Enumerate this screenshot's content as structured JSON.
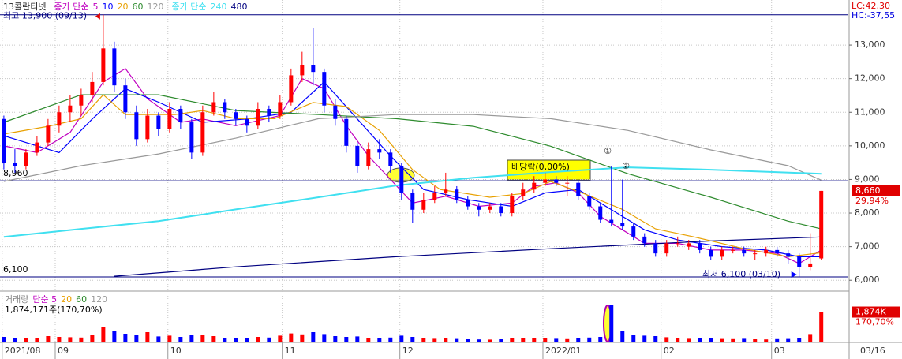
{
  "chart_data": {
    "type": "candlestick",
    "title": "13콜란티넷",
    "legend_prefix": "종가 단순",
    "up_color": "#ff0000",
    "down_color": "#0000ff",
    "x": [
      0,
      2,
      4,
      6,
      8,
      10,
      12,
      14,
      16,
      18,
      20,
      22,
      24,
      26,
      28,
      30,
      32,
      34,
      36,
      38,
      40,
      42,
      44,
      46,
      48,
      50,
      52,
      54,
      56,
      58,
      60,
      62,
      64,
      66,
      68,
      70,
      72,
      74,
      76,
      78,
      80,
      82,
      84,
      86,
      88,
      90,
      92,
      94,
      96,
      98,
      100,
      102,
      104,
      106,
      108,
      110,
      112,
      114,
      116,
      118,
      120,
      122,
      124,
      126,
      128,
      130,
      132,
      134,
      136,
      138,
      140,
      142,
      144,
      146,
      148
    ],
    "candles": [
      [
        10800,
        10900,
        9300,
        9500
      ],
      [
        9500,
        9900,
        9200,
        9400
      ],
      [
        9400,
        9900,
        9300,
        9800
      ],
      [
        9800,
        10300,
        9700,
        10100
      ],
      [
        10100,
        10800,
        10000,
        10600
      ],
      [
        10600,
        11200,
        10400,
        11000
      ],
      [
        11000,
        11500,
        10700,
        11200
      ],
      [
        11200,
        11700,
        10900,
        11500
      ],
      [
        11500,
        12200,
        11300,
        11900
      ],
      [
        11900,
        13900,
        11800,
        12900
      ],
      [
        12900,
        13100,
        11600,
        11800
      ],
      [
        11800,
        12000,
        10800,
        11000
      ],
      [
        11000,
        11200,
        10000,
        10200
      ],
      [
        10200,
        11100,
        10100,
        10900
      ],
      [
        10900,
        11000,
        10300,
        10500
      ],
      [
        10500,
        11300,
        10400,
        11100
      ],
      [
        11100,
        11200,
        10500,
        10700
      ],
      [
        10700,
        10800,
        9600,
        9800
      ],
      [
        9800,
        11200,
        9700,
        11000
      ],
      [
        11000,
        11600,
        10900,
        11300
      ],
      [
        11300,
        11400,
        10800,
        11000
      ],
      [
        11000,
        11100,
        10600,
        10800
      ],
      [
        10800,
        10900,
        10400,
        10600
      ],
      [
        10600,
        11300,
        10500,
        11100
      ],
      [
        11100,
        11200,
        10700,
        10900
      ],
      [
        10900,
        11500,
        10800,
        11300
      ],
      [
        11300,
        12300,
        11200,
        12100
      ],
      [
        12100,
        12800,
        11900,
        12400
      ],
      [
        12400,
        13500,
        11800,
        12200
      ],
      [
        12200,
        12300,
        11000,
        11200
      ],
      [
        11200,
        11400,
        10600,
        10800
      ],
      [
        10800,
        10900,
        9800,
        10000
      ],
      [
        10000,
        10100,
        9200,
        9400
      ],
      [
        9400,
        10100,
        9300,
        9900
      ],
      [
        9900,
        10200,
        9600,
        9800
      ],
      [
        9800,
        9900,
        9200,
        9400
      ],
      [
        9400,
        9500,
        8400,
        8600
      ],
      [
        8600,
        8700,
        7700,
        8100
      ],
      [
        8100,
        8600,
        8000,
        8400
      ],
      [
        8400,
        8800,
        8300,
        8600
      ],
      [
        8600,
        9200,
        8500,
        8700
      ],
      [
        8700,
        8800,
        8300,
        8400
      ],
      [
        8400,
        8500,
        8100,
        8200
      ],
      [
        8200,
        8300,
        7900,
        8100
      ],
      [
        8100,
        8300,
        8000,
        8200
      ],
      [
        8200,
        8300,
        7900,
        8000
      ],
      [
        8000,
        8600,
        7900,
        8500
      ],
      [
        8500,
        8900,
        8400,
        8700
      ],
      [
        8700,
        9100,
        8600,
        8900
      ],
      [
        8900,
        9200,
        8800,
        9000
      ],
      [
        9000,
        9100,
        8800,
        8900
      ],
      [
        8900,
        9100,
        8500,
        8900
      ],
      [
        8900,
        9000,
        8400,
        8500
      ],
      [
        8500,
        8600,
        8100,
        8200
      ],
      [
        8200,
        8300,
        7700,
        7800
      ],
      [
        7800,
        9400,
        7600,
        7700
      ],
      [
        7700,
        9000,
        7500,
        7600
      ],
      [
        7600,
        7700,
        7200,
        7300
      ],
      [
        7300,
        7400,
        7000,
        7100
      ],
      [
        7100,
        7200,
        6700,
        6800
      ],
      [
        6800,
        7200,
        6700,
        7100
      ],
      [
        7100,
        7300,
        7000,
        7100
      ],
      [
        7000,
        7200,
        6900,
        7100
      ],
      [
        7100,
        7200,
        6800,
        6900
      ],
      [
        6900,
        7000,
        6600,
        6700
      ],
      [
        6700,
        7000,
        6600,
        6900
      ],
      [
        6900,
        7000,
        6800,
        6900
      ],
      [
        6900,
        7000,
        6700,
        6800
      ],
      [
        6800,
        6900,
        6600,
        6800
      ],
      [
        6800,
        7000,
        6700,
        6900
      ],
      [
        6900,
        7000,
        6700,
        6800
      ],
      [
        6800,
        6900,
        6500,
        6700
      ],
      [
        6700,
        6800,
        6100,
        6400
      ],
      [
        6400,
        7400,
        6300,
        6500
      ],
      [
        6650,
        8660,
        6600,
        8660
      ]
    ],
    "xlim": [
      -0.7,
      152.9
    ],
    "xticks": [
      {
        "value": -0.3,
        "label": "2021/08"
      },
      {
        "value": 9.3,
        "label": "09"
      },
      {
        "value": 29.7,
        "label": "10"
      },
      {
        "value": 50.4,
        "label": "11"
      },
      {
        "value": 71.7,
        "label": "12"
      },
      {
        "value": 97.6,
        "label": "2022/01"
      },
      {
        "value": 119,
        "label": "02"
      },
      {
        "value": 139,
        "label": "03"
      }
    ],
    "last_date": "03/16",
    "ylim": [
      5700,
      14340
    ],
    "yticks": [
      {
        "value": 6000,
        "label": "6,000"
      },
      {
        "value": 7000,
        "label": "7,000"
      },
      {
        "value": 8000,
        "label": "8,000"
      },
      {
        "value": 9000,
        "label": "9,000"
      },
      {
        "value": 10000,
        "label": "10,000"
      },
      {
        "value": 11000,
        "label": "11,000"
      },
      {
        "value": 12000,
        "label": "12,000"
      },
      {
        "value": 13000,
        "label": "13,000"
      }
    ],
    "grid": true,
    "series": [
      {
        "name": "5",
        "color": "#c000c0",
        "x": [
          0,
          6,
          12,
          18,
          22,
          26,
          32,
          36,
          42,
          50,
          54,
          58,
          62,
          66,
          70,
          74,
          80,
          86,
          92,
          96,
          100,
          104,
          108,
          112,
          116,
          122,
          128,
          134,
          140,
          144,
          148
        ],
        "values": [
          10000,
          9800,
          10400,
          11900,
          12300,
          11400,
          10700,
          10800,
          10600,
          10900,
          12000,
          11700,
          10600,
          9700,
          9000,
          8300,
          8500,
          8200,
          8300,
          8800,
          8900,
          8600,
          7900,
          7500,
          7100,
          7100,
          6900,
          6900,
          6800,
          6500,
          6900
        ]
      },
      {
        "name": "10",
        "color": "#0000ff",
        "x": [
          0,
          10,
          16,
          22,
          28,
          36,
          44,
          52,
          58,
          64,
          70,
          76,
          84,
          92,
          98,
          104,
          110,
          116,
          122,
          130,
          138,
          144,
          148
        ],
        "values": [
          10300,
          9800,
          10800,
          11700,
          11300,
          10700,
          10800,
          11000,
          11900,
          10800,
          9700,
          8700,
          8400,
          8200,
          8600,
          8700,
          8100,
          7500,
          7200,
          7000,
          6900,
          6700,
          6700
        ]
      },
      {
        "name": "20",
        "color": "#e8a000",
        "x": [
          0,
          8,
          14,
          18,
          22,
          31,
          36,
          42,
          49,
          56,
          62,
          68,
          74,
          79,
          88,
          94,
          99,
          105,
          112,
          118,
          125,
          134,
          142,
          148
        ],
        "values": [
          10350,
          10580,
          10810,
          11520,
          10930,
          10930,
          11050,
          10810,
          10810,
          11290,
          11170,
          10460,
          9290,
          8700,
          8470,
          8580,
          8940,
          8580,
          8110,
          7530,
          7290,
          6940,
          6700,
          6820
        ]
      },
      {
        "name": "60",
        "color": "#2e8b2e",
        "x": [
          0,
          14,
          28,
          42,
          57,
          71,
          85,
          99,
          113,
          128,
          142,
          148
        ],
        "values": [
          10700,
          11520,
          11520,
          11050,
          10930,
          10810,
          10580,
          9990,
          9170,
          8470,
          7760,
          7530
        ]
      },
      {
        "name": "120",
        "color": "#999999",
        "x": [
          0,
          14,
          28,
          42,
          57,
          71,
          85,
          99,
          113,
          128,
          142,
          148
        ],
        "values": [
          8940,
          9410,
          9760,
          10230,
          10810,
          10930,
          10930,
          10810,
          10460,
          9880,
          9410,
          8980
        ]
      },
      {
        "name": "240",
        "color": "#40e0f0",
        "x": [
          0,
          14,
          28,
          42,
          57,
          71,
          85,
          99,
          113,
          128,
          148
        ],
        "values": [
          7290,
          7530,
          7760,
          8110,
          8470,
          8820,
          9050,
          9220,
          9360,
          9290,
          9170
        ]
      },
      {
        "name": "480",
        "color": "#000080",
        "x": [
          20,
          42,
          71,
          99,
          128,
          148
        ],
        "values": [
          6120,
          6400,
          6700,
          6940,
          7170,
          7290
        ]
      }
    ],
    "hlines": [
      {
        "value": 13900
      },
      {
        "value": 8960,
        "label": "8,960"
      },
      {
        "value": 6100,
        "label": "6,100"
      }
    ],
    "high": {
      "value": 13900,
      "label": "최고 13,900 (09/13)"
    },
    "low": {
      "value": 6100,
      "label": "최저 6,100 (03/10)"
    },
    "lc": "LC:42,30",
    "hc": "HC:-37,55",
    "last": {
      "value": 8660,
      "label": "8,660",
      "change": "29,94%"
    },
    "event": "배당락(0,00%)",
    "markers": [
      "①",
      "②"
    ],
    "volume": {
      "legend": [
        {
          "text": "거래량",
          "color": "#888888"
        },
        {
          "text": "단순 5",
          "color": "#c000c0"
        },
        {
          "text": "20",
          "color": "#e8a000"
        },
        {
          "text": "60",
          "color": "#2e8b2e"
        },
        {
          "text": "120",
          "color": "#999999"
        }
      ],
      "summary": "1,874,171주(170,70%)",
      "values": [
        300000,
        250000,
        200000,
        220000,
        350000,
        300000,
        280000,
        260000,
        400000,
        900000,
        650000,
        500000,
        420000,
        600000,
        330000,
        380000,
        300000,
        450000,
        420000,
        350000,
        250000,
        220000,
        200000,
        300000,
        260000,
        380000,
        520000,
        460000,
        600000,
        480000,
        350000,
        300000,
        330000,
        250000,
        220000,
        260000,
        380000,
        300000,
        200000,
        180000,
        250000,
        170000,
        150000,
        140000,
        130000,
        150000,
        250000,
        220000,
        230000,
        200000,
        180000,
        160000,
        240000,
        260000,
        300000,
        2300000,
        700000,
        420000,
        380000,
        350000,
        280000,
        200000,
        180000,
        220000,
        200000,
        170000,
        160000,
        180000,
        150000,
        140000,
        160000,
        170000,
        250000,
        480000,
        1874171
      ],
      "ylim": [
        0,
        2900000
      ],
      "last": {
        "value": 1874171,
        "label": "1,874K",
        "change": "170,70%"
      }
    }
  }
}
